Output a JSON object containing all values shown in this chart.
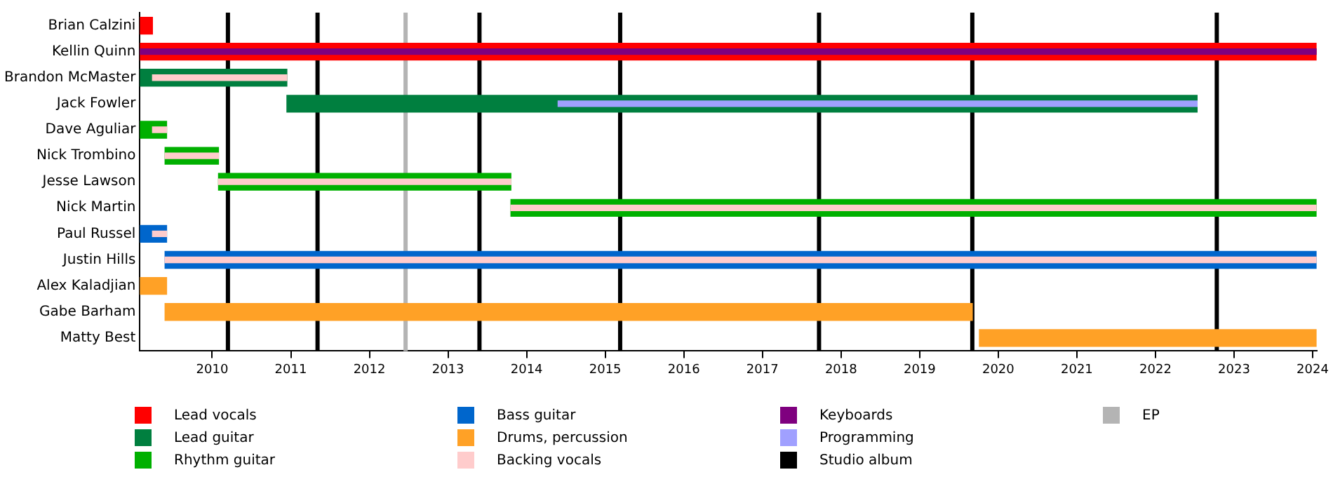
{
  "chart_data": {
    "type": "bar",
    "orientation": "horizontal",
    "categories": [
      "Brian Calzini",
      "Kellin Quinn",
      "Brandon McMaster",
      "Jack Fowler",
      "Dave Aguliar",
      "Nick Trombino",
      "Jesse Lawson",
      "Nick Martin",
      "Paul Russel",
      "Justin Hills",
      "Alex Kaladjian",
      "Gabe Barham",
      "Matty Best"
    ],
    "series": [
      {
        "name": "Lead vocals",
        "color": "#ff0000",
        "base": [
          2009.08,
          2009.08,
          null,
          null,
          null,
          null,
          null,
          null,
          null,
          null,
          null,
          null,
          null
        ],
        "values": [
          0.16,
          14.97,
          null,
          null,
          null,
          null,
          null,
          null,
          null,
          null,
          null,
          null,
          null
        ]
      },
      {
        "name": "Lead guitar",
        "color": "#007f3f",
        "base": [
          null,
          null,
          2009.08,
          2010.95,
          null,
          null,
          null,
          null,
          null,
          null,
          null,
          null,
          null
        ],
        "values": [
          null,
          null,
          1.87,
          11.58,
          null,
          null,
          null,
          null,
          null,
          null,
          null,
          null,
          null
        ]
      },
      {
        "name": "Rhythm guitar",
        "color": "#00b000",
        "base": [
          null,
          null,
          null,
          null,
          2009.08,
          2009.4,
          2010.08,
          2013.8,
          null,
          null,
          null,
          null,
          null
        ],
        "values": [
          null,
          null,
          null,
          null,
          0.34,
          0.68,
          3.72,
          10.25,
          null,
          null,
          null,
          null,
          null
        ]
      },
      {
        "name": "Bass guitar",
        "color": "#0066cc",
        "base": [
          null,
          null,
          null,
          null,
          null,
          null,
          null,
          null,
          2009.08,
          2009.4,
          null,
          null,
          null
        ],
        "values": [
          null,
          null,
          null,
          null,
          null,
          null,
          null,
          null,
          0.34,
          14.65,
          null,
          null,
          null
        ]
      },
      {
        "name": "Drums, percussion",
        "color": "#ffa126",
        "base": [
          null,
          null,
          null,
          null,
          null,
          null,
          null,
          null,
          null,
          null,
          2009.08,
          2009.4,
          2019.76
        ],
        "values": [
          null,
          null,
          null,
          null,
          null,
          null,
          null,
          null,
          null,
          null,
          0.34,
          10.27,
          4.29
        ]
      },
      {
        "name": "Backing vocals",
        "color": "#ffcccc",
        "base": [
          null,
          null,
          2009.24,
          null,
          2009.24,
          2009.4,
          2010.08,
          2013.8,
          2009.24,
          2009.4,
          null,
          null,
          null
        ],
        "values": [
          null,
          null,
          1.71,
          null,
          0.18,
          0.68,
          3.72,
          10.25,
          0.18,
          14.65,
          null,
          null,
          null
        ]
      },
      {
        "name": "Keyboards",
        "color": "#7f007f",
        "base": [
          null,
          2009.08,
          null,
          null,
          null,
          null,
          null,
          null,
          null,
          null,
          null,
          null,
          null
        ],
        "values": [
          null,
          14.97,
          null,
          null,
          null,
          null,
          null,
          null,
          null,
          null,
          null,
          null,
          null
        ]
      },
      {
        "name": "Programming",
        "color": "#a0a0ff",
        "base": [
          null,
          null,
          null,
          2014.4,
          null,
          null,
          null,
          null,
          null,
          null,
          null,
          null,
          null
        ],
        "values": [
          null,
          null,
          null,
          8.13,
          null,
          null,
          null,
          null,
          null,
          null,
          null,
          null,
          null
        ]
      }
    ],
    "xlim": [
      2009.08,
      2024.05
    ],
    "xticks": [
      2010,
      2011,
      2012,
      2013,
      2014,
      2015,
      2016,
      2017,
      2018,
      2019,
      2020,
      2021,
      2022,
      2023,
      2024
    ],
    "ref_lines": [
      {
        "axis": "x",
        "value": 2010.2,
        "label": "Studio album",
        "color": "#000000"
      },
      {
        "axis": "x",
        "value": 2011.34,
        "color": "#000000"
      },
      {
        "axis": "x",
        "value": 2012.46,
        "label": "EP",
        "color": "#b4b4b4"
      },
      {
        "axis": "x",
        "value": 2013.4,
        "color": "#000000"
      },
      {
        "axis": "x",
        "value": 2015.19,
        "color": "#000000"
      },
      {
        "axis": "x",
        "value": 2017.72,
        "color": "#000000"
      },
      {
        "axis": "x",
        "value": 2019.67,
        "color": "#000000"
      },
      {
        "axis": "x",
        "value": 2022.78,
        "color": "#000000"
      }
    ],
    "grid": false,
    "legend": "bottom"
  }
}
